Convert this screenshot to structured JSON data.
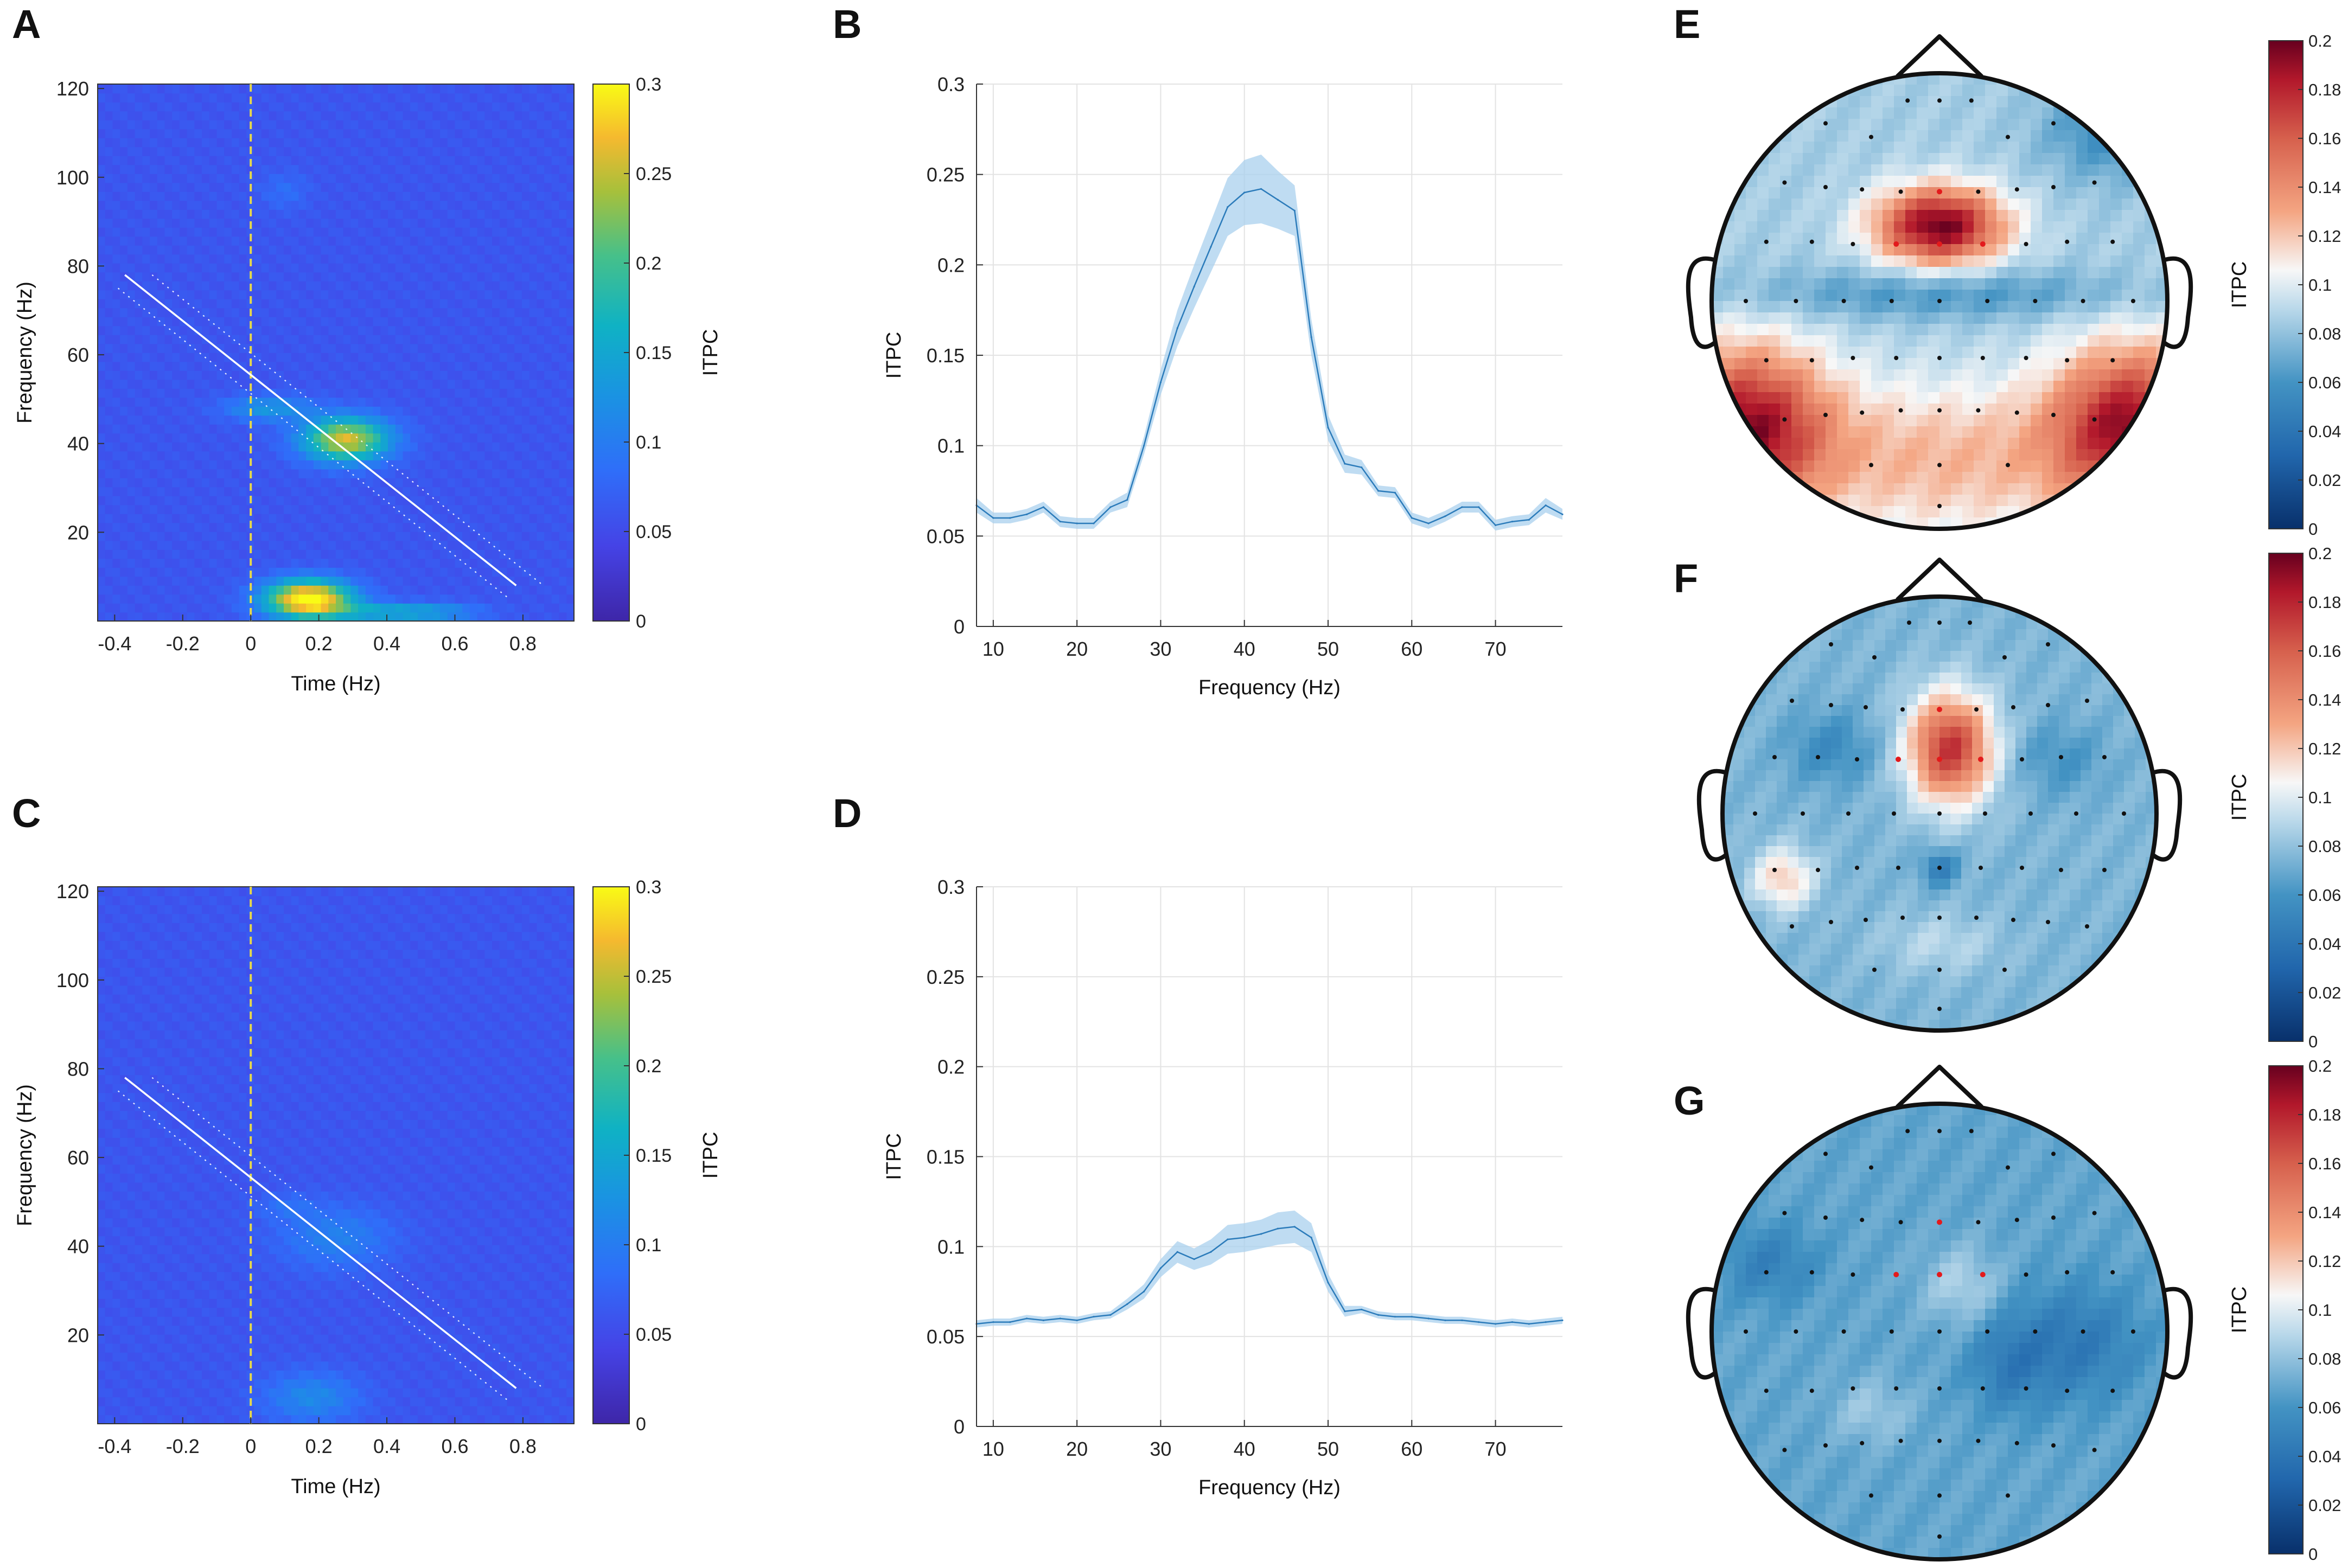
{
  "figure": {
    "panel_letters": [
      "A",
      "B",
      "C",
      "D",
      "E",
      "F",
      "G"
    ],
    "colors": {
      "parula_low": "#3e26a8",
      "parula_mid": "#2c7fe8",
      "parula_high": "#f9fb15",
      "line_blue": "#2b7bba",
      "band_blue": "#a9d0ee",
      "topo_low": "#08306b",
      "topo_mid": "#f7f7f7",
      "topo_high": "#67001f",
      "grid": "#e3e3e3"
    }
  },
  "chart_data": [
    {
      "panel": "A",
      "type": "heatmap",
      "title": "",
      "xlabel": "Time (Hz)",
      "ylabel": "Frequency (Hz)",
      "xlim": [
        -0.45,
        0.95
      ],
      "ylim": [
        0,
        121
      ],
      "xticks": [
        -0.4,
        -0.2,
        0,
        0.2,
        0.4,
        0.6,
        0.8
      ],
      "xtick_labels": [
        "-0.4",
        "-0.2",
        "0",
        "0.2",
        "0.4",
        "0.6",
        "0.8"
      ],
      "yticks": [
        20,
        40,
        60,
        80,
        100,
        120
      ],
      "ytick_labels": [
        "20",
        "40",
        "60",
        "80",
        "100",
        "120"
      ],
      "colorbar": {
        "label": "ITPC",
        "range": [
          0,
          0.3
        ],
        "ticks": [
          0,
          0.05,
          0.1,
          0.15,
          0.2,
          0.25,
          0.3
        ],
        "tick_labels": [
          "0",
          "0.05",
          "0.1",
          "0.15",
          "0.2",
          "0.25",
          "0.3"
        ]
      },
      "stimulus_onset": 0,
      "sweep_line": {
        "t_start": -0.37,
        "f_start": 78,
        "t_end": 0.78,
        "f_end": 8
      },
      "sweep_bounds_offset": 0.08,
      "background_value": 0.06,
      "blobs": [
        {
          "t": 0.28,
          "f": 41,
          "st": 0.09,
          "sf": 3.5,
          "v": 0.2
        },
        {
          "t": 0.05,
          "f": 48,
          "st": 0.09,
          "sf": 2.0,
          "v": 0.07
        },
        {
          "t": 0.17,
          "f": 5,
          "st": 0.09,
          "sf": 3.0,
          "v": 0.26
        },
        {
          "t": 0.38,
          "f": 2,
          "st": 0.12,
          "sf": 1.5,
          "v": 0.08
        },
        {
          "t": 0.55,
          "f": 2,
          "st": 0.1,
          "sf": 1.5,
          "v": 0.05
        },
        {
          "t": 0.1,
          "f": 97,
          "st": 0.05,
          "sf": 3.0,
          "v": 0.025
        }
      ]
    },
    {
      "panel": "B",
      "type": "line",
      "title": "",
      "xlabel": "Frequency (Hz)",
      "ylabel": "ITPC",
      "xlim": [
        8,
        78
      ],
      "ylim": [
        0,
        0.3
      ],
      "xticks": [
        10,
        20,
        30,
        40,
        50,
        60,
        70
      ],
      "xtick_labels": [
        "10",
        "20",
        "30",
        "40",
        "50",
        "60",
        "70"
      ],
      "yticks": [
        0,
        0.05,
        0.1,
        0.15,
        0.2,
        0.25,
        0.3
      ],
      "ytick_labels": [
        "0",
        "0.05",
        "0.1",
        "0.15",
        "0.2",
        "0.25",
        "0.3"
      ],
      "grid": true,
      "x": [
        8,
        10,
        12,
        14,
        16,
        18,
        20,
        22,
        24,
        26,
        28,
        30,
        32,
        34,
        36,
        38,
        40,
        42,
        44,
        46,
        48,
        50,
        52,
        54,
        56,
        58,
        60,
        62,
        64,
        66,
        68,
        70,
        72,
        74,
        76,
        78
      ],
      "mean": [
        0.067,
        0.06,
        0.06,
        0.062,
        0.066,
        0.058,
        0.057,
        0.057,
        0.066,
        0.07,
        0.1,
        0.135,
        0.165,
        0.188,
        0.21,
        0.232,
        0.24,
        0.242,
        0.236,
        0.23,
        0.16,
        0.11,
        0.09,
        0.088,
        0.075,
        0.074,
        0.06,
        0.057,
        0.061,
        0.066,
        0.066,
        0.056,
        0.058,
        0.059,
        0.067,
        0.062
      ],
      "sem": [
        0.004,
        0.003,
        0.003,
        0.003,
        0.003,
        0.003,
        0.003,
        0.003,
        0.003,
        0.004,
        0.005,
        0.007,
        0.01,
        0.012,
        0.014,
        0.016,
        0.018,
        0.019,
        0.016,
        0.014,
        0.01,
        0.007,
        0.005,
        0.004,
        0.003,
        0.003,
        0.003,
        0.003,
        0.003,
        0.003,
        0.003,
        0.003,
        0.003,
        0.003,
        0.004,
        0.003
      ]
    },
    {
      "panel": "C",
      "type": "heatmap",
      "title": "",
      "xlabel": "Time (Hz)",
      "ylabel": "Frequency (Hz)",
      "xlim": [
        -0.45,
        0.95
      ],
      "ylim": [
        0,
        121
      ],
      "xticks": [
        -0.4,
        -0.2,
        0,
        0.2,
        0.4,
        0.6,
        0.8
      ],
      "xtick_labels": [
        "-0.4",
        "-0.2",
        "0",
        "0.2",
        "0.4",
        "0.6",
        "0.8"
      ],
      "yticks": [
        20,
        40,
        60,
        80,
        100,
        120
      ],
      "ytick_labels": [
        "20",
        "40",
        "60",
        "80",
        "100",
        "120"
      ],
      "colorbar": {
        "label": "ITPC",
        "range": [
          0,
          0.3
        ],
        "ticks": [
          0,
          0.05,
          0.1,
          0.15,
          0.2,
          0.25,
          0.3
        ],
        "tick_labels": [
          "0",
          "0.05",
          "0.1",
          "0.15",
          "0.2",
          "0.25",
          "0.3"
        ]
      },
      "stimulus_onset": 0,
      "sweep_line": {
        "t_start": -0.37,
        "f_start": 78,
        "t_end": 0.78,
        "f_end": 8
      },
      "sweep_bounds_offset": 0.08,
      "background_value": 0.06,
      "blobs": [
        {
          "t": 0.25,
          "f": 42,
          "st": 0.12,
          "sf": 5.0,
          "v": 0.045
        },
        {
          "t": 0.18,
          "f": 6,
          "st": 0.1,
          "sf": 4.0,
          "v": 0.055
        },
        {
          "t": 0.1,
          "f": 49,
          "st": 0.06,
          "sf": 2.0,
          "v": 0.025
        }
      ]
    },
    {
      "panel": "D",
      "type": "line",
      "title": "",
      "xlabel": "Frequency (Hz)",
      "ylabel": "ITPC",
      "xlim": [
        8,
        78
      ],
      "ylim": [
        0,
        0.3
      ],
      "xticks": [
        10,
        20,
        30,
        40,
        50,
        60,
        70
      ],
      "xtick_labels": [
        "10",
        "20",
        "30",
        "40",
        "50",
        "60",
        "70"
      ],
      "yticks": [
        0,
        0.05,
        0.1,
        0.15,
        0.2,
        0.25,
        0.3
      ],
      "ytick_labels": [
        "0",
        "0.05",
        "0.1",
        "0.15",
        "0.2",
        "0.25",
        "0.3"
      ],
      "grid": true,
      "x": [
        8,
        10,
        12,
        14,
        16,
        18,
        20,
        22,
        24,
        26,
        28,
        30,
        32,
        34,
        36,
        38,
        40,
        42,
        44,
        46,
        48,
        50,
        52,
        54,
        56,
        58,
        60,
        62,
        64,
        66,
        68,
        70,
        72,
        74,
        76,
        78
      ],
      "mean": [
        0.057,
        0.058,
        0.058,
        0.06,
        0.059,
        0.06,
        0.059,
        0.061,
        0.062,
        0.068,
        0.075,
        0.088,
        0.097,
        0.093,
        0.097,
        0.104,
        0.105,
        0.107,
        0.11,
        0.111,
        0.105,
        0.08,
        0.064,
        0.065,
        0.062,
        0.061,
        0.061,
        0.06,
        0.059,
        0.059,
        0.058,
        0.057,
        0.058,
        0.057,
        0.058,
        0.059
      ],
      "sem": [
        0.002,
        0.002,
        0.002,
        0.002,
        0.002,
        0.002,
        0.002,
        0.002,
        0.002,
        0.003,
        0.004,
        0.005,
        0.006,
        0.006,
        0.007,
        0.008,
        0.008,
        0.008,
        0.009,
        0.009,
        0.008,
        0.005,
        0.003,
        0.002,
        0.002,
        0.002,
        0.002,
        0.002,
        0.002,
        0.002,
        0.002,
        0.002,
        0.002,
        0.002,
        0.002,
        0.002
      ]
    },
    {
      "panel": "E",
      "type": "heatmap",
      "title": "",
      "description_type": "topoplot",
      "colorbar": {
        "label": "ITPC",
        "range": [
          0,
          0.2
        ],
        "ticks": [
          0,
          0.02,
          0.04,
          0.06,
          0.08,
          0.1,
          0.12,
          0.14,
          0.16,
          0.18,
          0.2
        ],
        "tick_labels": [
          "0",
          "0.02",
          "0.04",
          "0.06",
          "0.08",
          "0.1",
          "0.12",
          "0.14",
          "0.16",
          "0.18",
          "0.2"
        ]
      },
      "base_value": 0.085,
      "blobs": [
        {
          "u": 0.0,
          "v": -0.33,
          "su": 0.2,
          "sv": 0.12,
          "a": 0.115
        },
        {
          "u": -0.85,
          "v": 0.55,
          "su": 0.25,
          "sv": 0.25,
          "a": 0.1
        },
        {
          "u": 0.85,
          "v": 0.55,
          "su": 0.25,
          "sv": 0.25,
          "a": 0.1
        },
        {
          "u": 0.0,
          "v": 0.7,
          "su": 0.55,
          "sv": 0.25,
          "a": 0.04
        },
        {
          "u": 0.0,
          "v": -0.03,
          "su": 0.65,
          "sv": 0.08,
          "a": -0.025
        },
        {
          "u": 0.75,
          "v": -0.75,
          "su": 0.2,
          "sv": 0.15,
          "a": -0.03
        }
      ],
      "highlight_electrodes": [
        "Fz",
        "F1",
        "F2",
        "FCz",
        "FC1",
        "FC2"
      ]
    },
    {
      "panel": "F",
      "type": "heatmap",
      "title": "",
      "description_type": "topoplot",
      "colorbar": {
        "label": "ITPC",
        "range": [
          0,
          0.2
        ],
        "ticks": [
          0,
          0.02,
          0.04,
          0.06,
          0.08,
          0.1,
          0.12,
          0.14,
          0.16,
          0.18,
          0.2
        ],
        "tick_labels": [
          "0",
          "0.02",
          "0.04",
          "0.06",
          "0.08",
          "0.1",
          "0.12",
          "0.14",
          "0.16",
          "0.18",
          "0.2"
        ]
      },
      "base_value": 0.075,
      "blobs": [
        {
          "u": 0.05,
          "v": -0.3,
          "su": 0.14,
          "sv": 0.18,
          "a": 0.1
        },
        {
          "u": -0.72,
          "v": 0.3,
          "su": 0.1,
          "sv": 0.1,
          "a": 0.045
        },
        {
          "u": 0.0,
          "v": 0.25,
          "su": 0.06,
          "sv": 0.06,
          "a": -0.03
        },
        {
          "u": -0.5,
          "v": -0.3,
          "su": 0.15,
          "sv": 0.12,
          "a": -0.02
        },
        {
          "u": 0.55,
          "v": -0.25,
          "su": 0.15,
          "sv": 0.12,
          "a": -0.015
        },
        {
          "u": 0.0,
          "v": 0.6,
          "su": 0.2,
          "sv": 0.1,
          "a": 0.015
        }
      ],
      "highlight_electrodes": [
        "Fz",
        "F1",
        "F2",
        "FCz",
        "FC1",
        "FC2"
      ]
    },
    {
      "panel": "G",
      "type": "heatmap",
      "title": "",
      "description_type": "topoplot",
      "colorbar": {
        "label": "ITPC",
        "range": [
          0,
          0.2
        ],
        "ticks": [
          0,
          0.02,
          0.04,
          0.06,
          0.08,
          0.1,
          0.12,
          0.14,
          0.16,
          0.18,
          0.2
        ],
        "tick_labels": [
          "0",
          "0.02",
          "0.04",
          "0.06",
          "0.08",
          "0.1",
          "0.12",
          "0.14",
          "0.16",
          "0.18",
          "0.2"
        ]
      },
      "base_value": 0.068,
      "blobs": [
        {
          "u": 0.1,
          "v": -0.2,
          "su": 0.12,
          "sv": 0.12,
          "a": 0.02
        },
        {
          "u": -0.3,
          "v": 0.35,
          "su": 0.12,
          "sv": 0.1,
          "a": 0.015
        },
        {
          "u": 0.6,
          "v": 0.05,
          "su": 0.2,
          "sv": 0.18,
          "a": -0.025
        },
        {
          "u": 0.3,
          "v": 0.15,
          "su": 0.12,
          "sv": 0.15,
          "a": -0.02
        },
        {
          "u": -0.75,
          "v": -0.3,
          "su": 0.15,
          "sv": 0.12,
          "a": -0.02
        }
      ],
      "highlight_electrodes": [
        "Fz",
        "F1",
        "F2",
        "FCz",
        "FC1",
        "FC2"
      ]
    }
  ]
}
